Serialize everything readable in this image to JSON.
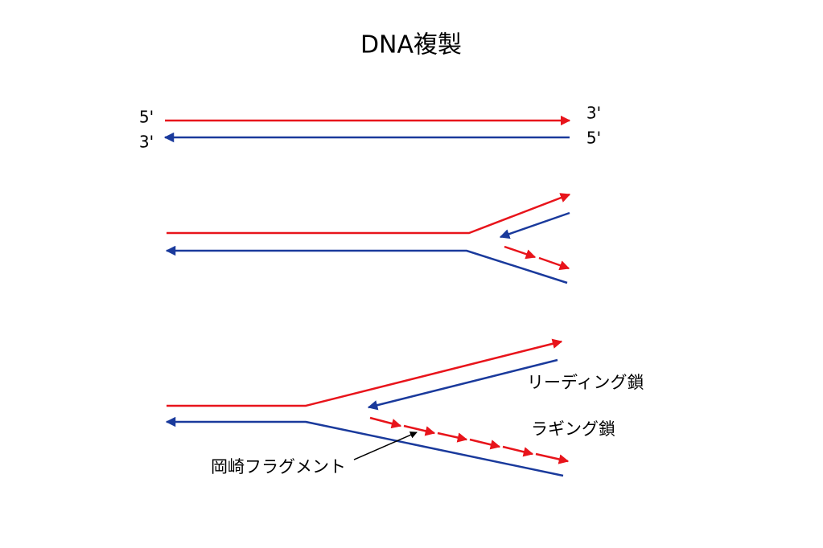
{
  "title": "DNA複製",
  "strand_ends": {
    "top_left_upper": "5'",
    "top_left_lower": "3'",
    "top_right_upper": "3'",
    "top_right_lower": "5'"
  },
  "labels": {
    "leading_strand": "リーディング鎖",
    "lagging_strand": "ラギング鎖",
    "okazaki_fragment": "岡崎フラグメント"
  }
}
